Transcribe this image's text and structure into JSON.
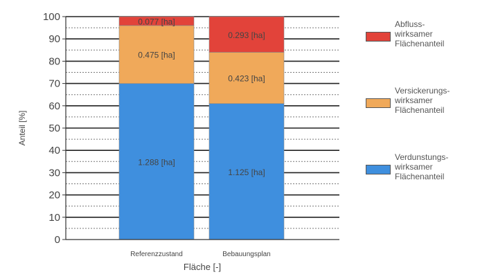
{
  "chart_data": {
    "type": "bar",
    "stacked": true,
    "title": "",
    "xlabel": "Fläche [-]",
    "ylabel": "Anteil [%]",
    "ylim": [
      0,
      100
    ],
    "yticks": [
      0,
      10,
      20,
      30,
      40,
      50,
      60,
      70,
      80,
      90,
      100
    ],
    "grid": "horizontal dotted",
    "legend_position": "right",
    "categories": [
      "Referenzzustand",
      "Bebauungsplan"
    ],
    "series": [
      {
        "name": "Verdunstungs-\nwirksamer\nFlächenanteil",
        "color": "#3f8fde",
        "values": [
          70,
          61
        ],
        "labels": [
          "1.288 [ha]",
          "1.125 [ha]"
        ]
      },
      {
        "name": "Versickerungs-\nwirksamer\nFlächenanteil",
        "color": "#f0a95a",
        "values": [
          26,
          23
        ],
        "labels": [
          "0.475 [ha]",
          "0.423 [ha]"
        ]
      },
      {
        "name": "Abfluss-\nwirksamer\nFlächenanteil",
        "color": "#e2433a",
        "values": [
          4,
          16
        ],
        "labels": [
          "0.077 [ha]",
          "0.293 [ha]"
        ]
      }
    ]
  }
}
